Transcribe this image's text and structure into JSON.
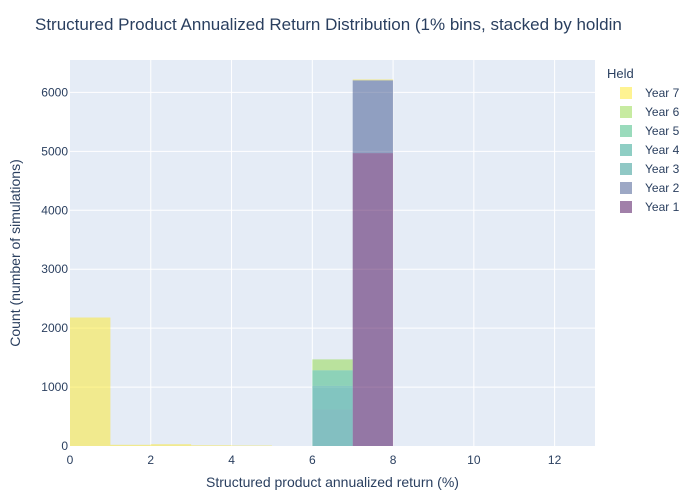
{
  "chart_data": {
    "type": "bar",
    "title": "Structured Product Annualized Return Distribution (1% bins, stacked by holdin",
    "xlabel": "Structured product annualized return (%)",
    "ylabel": "Count (number of simulations)",
    "legend_title": "Held",
    "legend_position": "right",
    "grid": true,
    "barmode": "stack",
    "xlim": [
      0,
      13
    ],
    "ylim": [
      0,
      6550
    ],
    "x_ticks": [
      0,
      2,
      4,
      6,
      8,
      10,
      12
    ],
    "y_ticks": [
      0,
      1000,
      2000,
      3000,
      4000,
      5000,
      6000
    ],
    "bins": [
      [
        0,
        1
      ],
      [
        1,
        2
      ],
      [
        2,
        3
      ],
      [
        3,
        4
      ],
      [
        4,
        5
      ],
      [
        5,
        6
      ],
      [
        6,
        7
      ],
      [
        7,
        8
      ],
      [
        8,
        9
      ],
      [
        9,
        10
      ],
      [
        10,
        11
      ],
      [
        11,
        12
      ],
      [
        12,
        13
      ]
    ],
    "series": [
      {
        "name": "Year 1",
        "color": "#440154",
        "values": [
          0,
          0,
          0,
          0,
          0,
          0,
          0,
          4970,
          0,
          0,
          0,
          0,
          0
        ]
      },
      {
        "name": "Year 2",
        "color": "#3b528b",
        "values": [
          0,
          0,
          0,
          0,
          0,
          0,
          0,
          1235,
          0,
          0,
          0,
          0,
          0
        ]
      },
      {
        "name": "Year 3",
        "color": "#21918c",
        "values": [
          0,
          0,
          0,
          0,
          0,
          0,
          620,
          0,
          0,
          0,
          0,
          0,
          0
        ]
      },
      {
        "name": "Year 4",
        "color": "#1f9e89",
        "values": [
          0,
          0,
          0,
          0,
          0,
          0,
          400,
          0,
          0,
          0,
          0,
          0,
          0
        ]
      },
      {
        "name": "Year 5",
        "color": "#35b779",
        "values": [
          0,
          0,
          0,
          0,
          0,
          0,
          265,
          0,
          0,
          0,
          0,
          0,
          0
        ]
      },
      {
        "name": "Year 6",
        "color": "#90d743",
        "values": [
          0,
          0,
          0,
          0,
          0,
          0,
          185,
          0,
          0,
          0,
          0,
          0,
          0
        ]
      },
      {
        "name": "Year 7",
        "color": "#fde725",
        "values": [
          2180,
          20,
          30,
          12,
          8,
          0,
          0,
          15,
          0,
          0,
          0,
          0,
          0
        ]
      }
    ],
    "bar_opacity": 0.5,
    "plot_background": "#e5ecf6",
    "grid_color": "#ffffff"
  }
}
